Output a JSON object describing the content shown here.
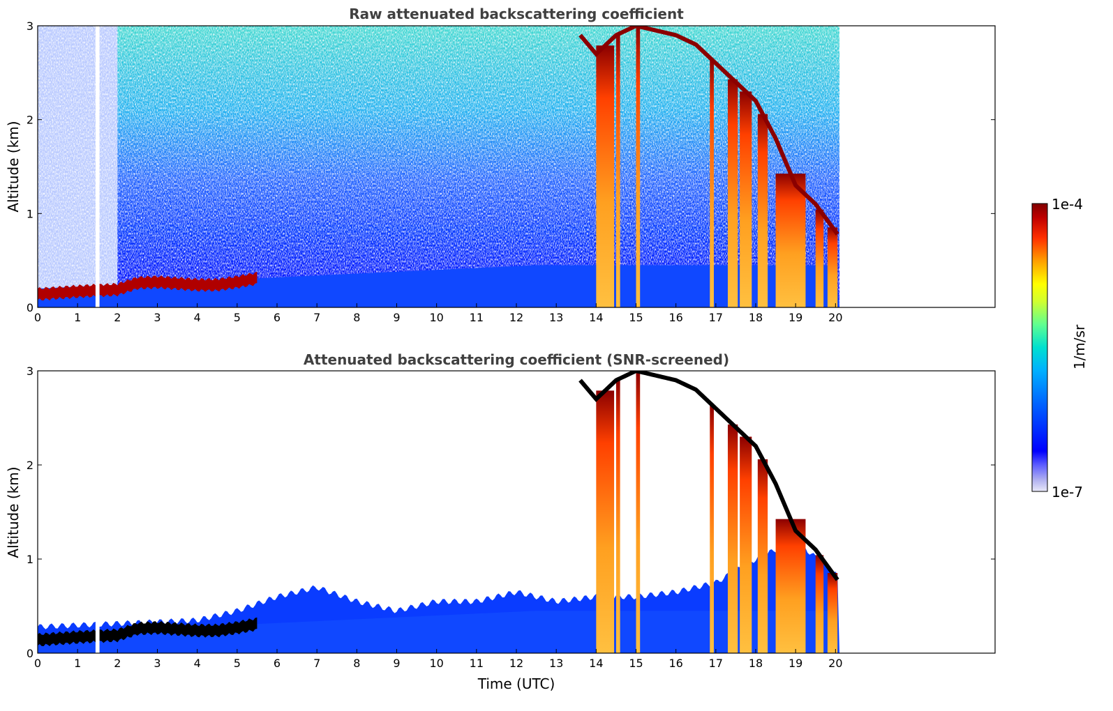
{
  "colors": {
    "colormap": [
      "#e8e8f8",
      "#c8c8f0",
      "#8080ff",
      "#0000ff",
      "#0050ff",
      "#00a0ff",
      "#00d8e0",
      "#40ffb0",
      "#b0ff50",
      "#ffff00",
      "#ffb000",
      "#ff4000",
      "#d00000",
      "#8b0000"
    ],
    "cloud_black": "#000000",
    "title_gray": "#404040"
  },
  "chart_data": [
    {
      "type": "heatmap",
      "title": "Raw attenuated backscattering coefficient",
      "xlabel": "",
      "ylabel": "Altitude (km)",
      "xlim": [
        0,
        24
      ],
      "ylim": [
        0,
        3
      ],
      "xticks": [
        "0",
        "1",
        "2",
        "3",
        "4",
        "5",
        "6",
        "7",
        "8",
        "9",
        "10",
        "11",
        "12",
        "13",
        "14",
        "15",
        "16",
        "17",
        "18",
        "19",
        "20"
      ],
      "yticks": [
        "0",
        "1",
        "2",
        "3"
      ],
      "data_extent_hours": [
        0,
        20.1
      ],
      "data_gap_hours": [
        1.45,
        1.55
      ],
      "features": [
        {
          "name": "boundary layer top",
          "t": [
            0,
            1,
            2,
            2.5,
            3,
            4,
            4.5,
            5,
            5.5
          ],
          "alt_km": [
            0.15,
            0.18,
            0.2,
            0.27,
            0.28,
            0.25,
            0.25,
            0.28,
            0.32
          ]
        },
        {
          "name": "cloud layer descending",
          "t": [
            13.6,
            14,
            14.5,
            15,
            15.5,
            16,
            16.5,
            17,
            17.5,
            18,
            18.5,
            19,
            19.5,
            20.1
          ],
          "alt_km": [
            2.9,
            2.7,
            2.9,
            3.0,
            2.95,
            2.9,
            2.8,
            2.6,
            2.4,
            2.2,
            1.8,
            1.3,
            1.1,
            0.75
          ]
        }
      ]
    },
    {
      "type": "heatmap",
      "title": "Attenuated backscattering coefficient (SNR-screened)",
      "xlabel": "Time (UTC)",
      "ylabel": "Altitude (km)",
      "xlim": [
        0,
        24
      ],
      "ylim": [
        0,
        3
      ],
      "xticks": [
        "0",
        "1",
        "2",
        "3",
        "4",
        "5",
        "6",
        "7",
        "8",
        "9",
        "10",
        "11",
        "12",
        "13",
        "14",
        "15",
        "16",
        "17",
        "18",
        "19",
        "20"
      ],
      "yticks": [
        "0",
        "1",
        "2",
        "3"
      ],
      "data_extent_hours": [
        0,
        20.1
      ],
      "data_gap_hours": [
        1.45,
        1.55
      ],
      "screen_top_profile": {
        "t": [
          0,
          4,
          5,
          6,
          7,
          8,
          9,
          10,
          11,
          12,
          13,
          14,
          15,
          16,
          17,
          18,
          19,
          20.1
        ],
        "alt_km": [
          0.28,
          0.35,
          0.45,
          0.6,
          0.7,
          0.55,
          0.45,
          0.55,
          0.55,
          0.65,
          0.55,
          0.6,
          0.6,
          0.65,
          0.75,
          1.0,
          1.2,
          0.8
        ]
      }
    }
  ],
  "colorbar": {
    "label": "1/m/sr",
    "max_label": "1e-4",
    "min_label": "1e-7",
    "range": [
      1e-07,
      0.0001
    ],
    "scale": "log"
  }
}
